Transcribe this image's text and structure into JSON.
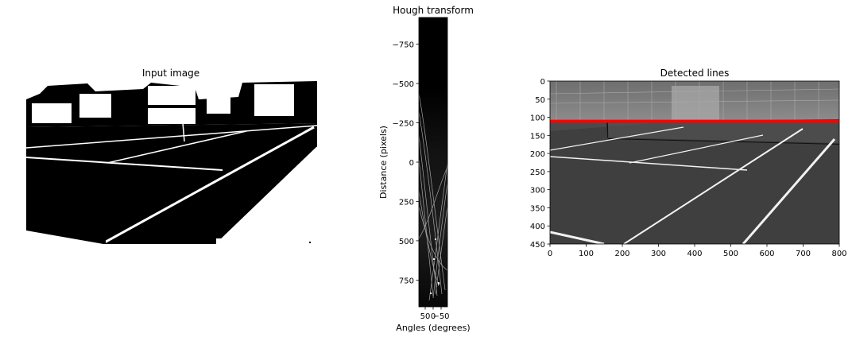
{
  "chart_data": [
    {
      "type": "image",
      "title": "Input image",
      "axes_visible": false,
      "colormap": "binary black/white"
    },
    {
      "type": "heatmap",
      "title": "Hough transform",
      "xlabel": "Angles (degrees)",
      "ylabel": "Distance (pixels)",
      "x_ticks": [
        {
          "value": 50,
          "label": "50"
        },
        {
          "value": 0,
          "label": "0"
        },
        {
          "value": -50,
          "label": "−50"
        }
      ],
      "y_ticks": [
        {
          "value": -750,
          "label": "−750"
        },
        {
          "value": -500,
          "label": "−500"
        },
        {
          "value": -250,
          "label": "−250"
        },
        {
          "value": 0,
          "label": "0"
        },
        {
          "value": 250,
          "label": "250"
        },
        {
          "value": 500,
          "label": "500"
        },
        {
          "value": 750,
          "label": "750"
        }
      ],
      "xlim": [
        90,
        -90
      ],
      "ylim": [
        -920,
        920
      ],
      "colormap": "gray"
    },
    {
      "type": "image",
      "title": "Detected lines",
      "x_ticks": [
        0,
        100,
        200,
        300,
        400,
        500,
        600,
        700,
        800
      ],
      "y_ticks": [
        0,
        50,
        100,
        150,
        200,
        250,
        300,
        350,
        400,
        450
      ],
      "xlim": [
        0,
        800
      ],
      "ylim": [
        450,
        0
      ],
      "colormap": "gray",
      "overlay_lines": [
        {
          "color": "#ff0000",
          "x": [
            0,
            800
          ],
          "y": [
            111,
            111
          ]
        }
      ]
    }
  ]
}
